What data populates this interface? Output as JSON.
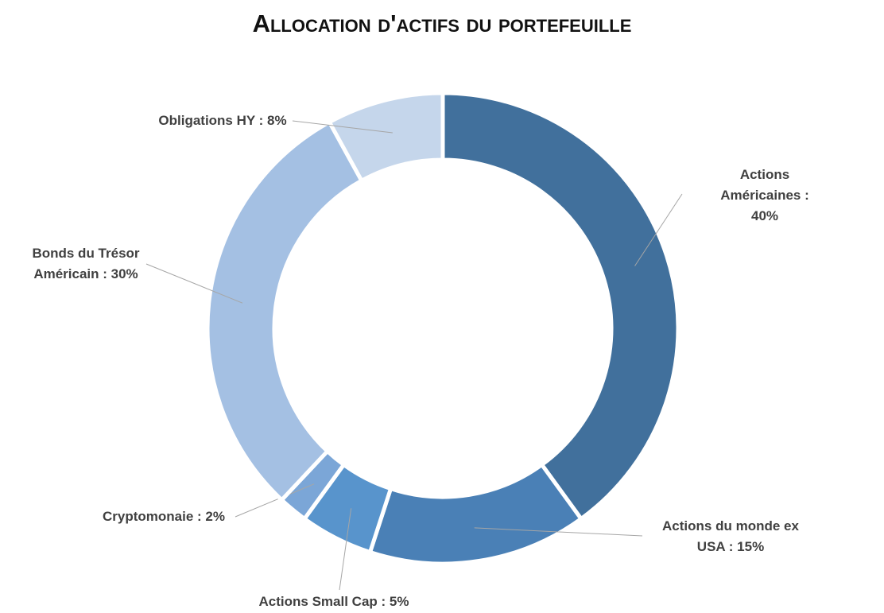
{
  "chart_data": {
    "type": "doughnut",
    "title": "Allocation d'actifs du portefeuille",
    "values": [
      40,
      15,
      5,
      2,
      30,
      8
    ],
    "value_labels": [
      "Actions Américaines : 40%",
      "Actions du monde ex USA : 15%",
      "Actions Small Cap : 5%",
      "Cryptomonaie : 2%",
      "Bonds du Trésor Américain : 30%",
      "Obligations HY : 8%"
    ],
    "colors": [
      "#41709c",
      "#4a80b6",
      "#5894cc",
      "#7ba6d7",
      "#a4c0e3",
      "#c5d6eb"
    ]
  }
}
